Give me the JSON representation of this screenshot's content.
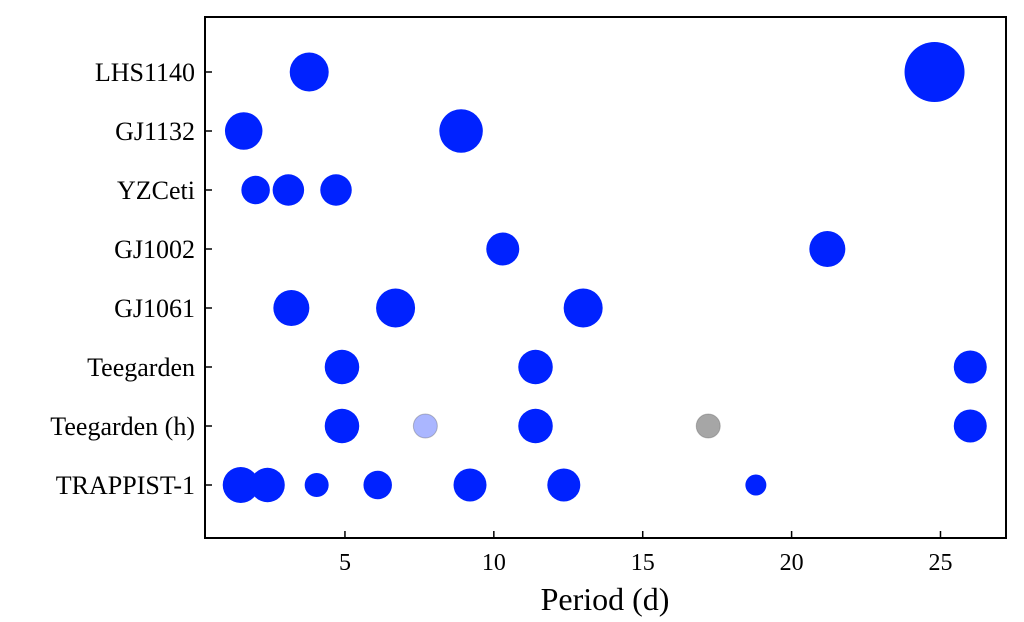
{
  "chart_data": {
    "type": "scatter",
    "xlabel": "Period (d)",
    "xlim": [
      0.3,
      27.2
    ],
    "xticks": [
      5,
      10,
      15,
      20,
      25
    ],
    "grid": false,
    "legend": "none",
    "marker_color": "#0022ff",
    "categories": [
      "LHS1140",
      "GJ1132",
      "YZCeti",
      "GJ1002",
      "GJ1061",
      "Teegarden",
      "Teegarden (h)",
      "TRAPPIST-1"
    ],
    "series": [
      {
        "points": [
          {
            "category": "LHS1140",
            "x": 3.8,
            "size": 1.3
          },
          {
            "category": "LHS1140",
            "x": 24.8,
            "size": 2.0
          },
          {
            "category": "GJ1132",
            "x": 1.6,
            "size": 1.25
          },
          {
            "category": "GJ1132",
            "x": 8.9,
            "size": 1.45
          },
          {
            "category": "YZCeti",
            "x": 2.0,
            "size": 0.95
          },
          {
            "category": "YZCeti",
            "x": 3.1,
            "size": 1.05
          },
          {
            "category": "YZCeti",
            "x": 4.7,
            "size": 1.05
          },
          {
            "category": "GJ1002",
            "x": 10.3,
            "size": 1.1
          },
          {
            "category": "GJ1002",
            "x": 21.2,
            "size": 1.2
          },
          {
            "category": "GJ1061",
            "x": 3.2,
            "size": 1.2
          },
          {
            "category": "GJ1061",
            "x": 6.7,
            "size": 1.3
          },
          {
            "category": "GJ1061",
            "x": 13.0,
            "size": 1.3
          },
          {
            "category": "Teegarden",
            "x": 4.9,
            "size": 1.15
          },
          {
            "category": "Teegarden",
            "x": 11.4,
            "size": 1.15
          },
          {
            "category": "Teegarden",
            "x": 26.0,
            "size": 1.1
          },
          {
            "category": "Teegarden (h)",
            "x": 4.9,
            "size": 1.15
          },
          {
            "category": "Teegarden (h)",
            "x": 7.7,
            "size": 0.8,
            "color": "#aab6ff"
          },
          {
            "category": "Teegarden (h)",
            "x": 11.4,
            "size": 1.15
          },
          {
            "category": "Teegarden (h)",
            "x": 17.2,
            "size": 0.8,
            "color": "#a6a6a6"
          },
          {
            "category": "Teegarden (h)",
            "x": 26.0,
            "size": 1.1
          },
          {
            "category": "TRAPPIST-1",
            "x": 1.5,
            "size": 1.2
          },
          {
            "category": "TRAPPIST-1",
            "x": 2.4,
            "size": 1.15
          },
          {
            "category": "TRAPPIST-1",
            "x": 4.05,
            "size": 0.8
          },
          {
            "category": "TRAPPIST-1",
            "x": 6.1,
            "size": 0.95
          },
          {
            "category": "TRAPPIST-1",
            "x": 9.2,
            "size": 1.1
          },
          {
            "category": "TRAPPIST-1",
            "x": 12.35,
            "size": 1.1
          },
          {
            "category": "TRAPPIST-1",
            "x": 18.8,
            "size": 0.7
          }
        ]
      }
    ]
  }
}
